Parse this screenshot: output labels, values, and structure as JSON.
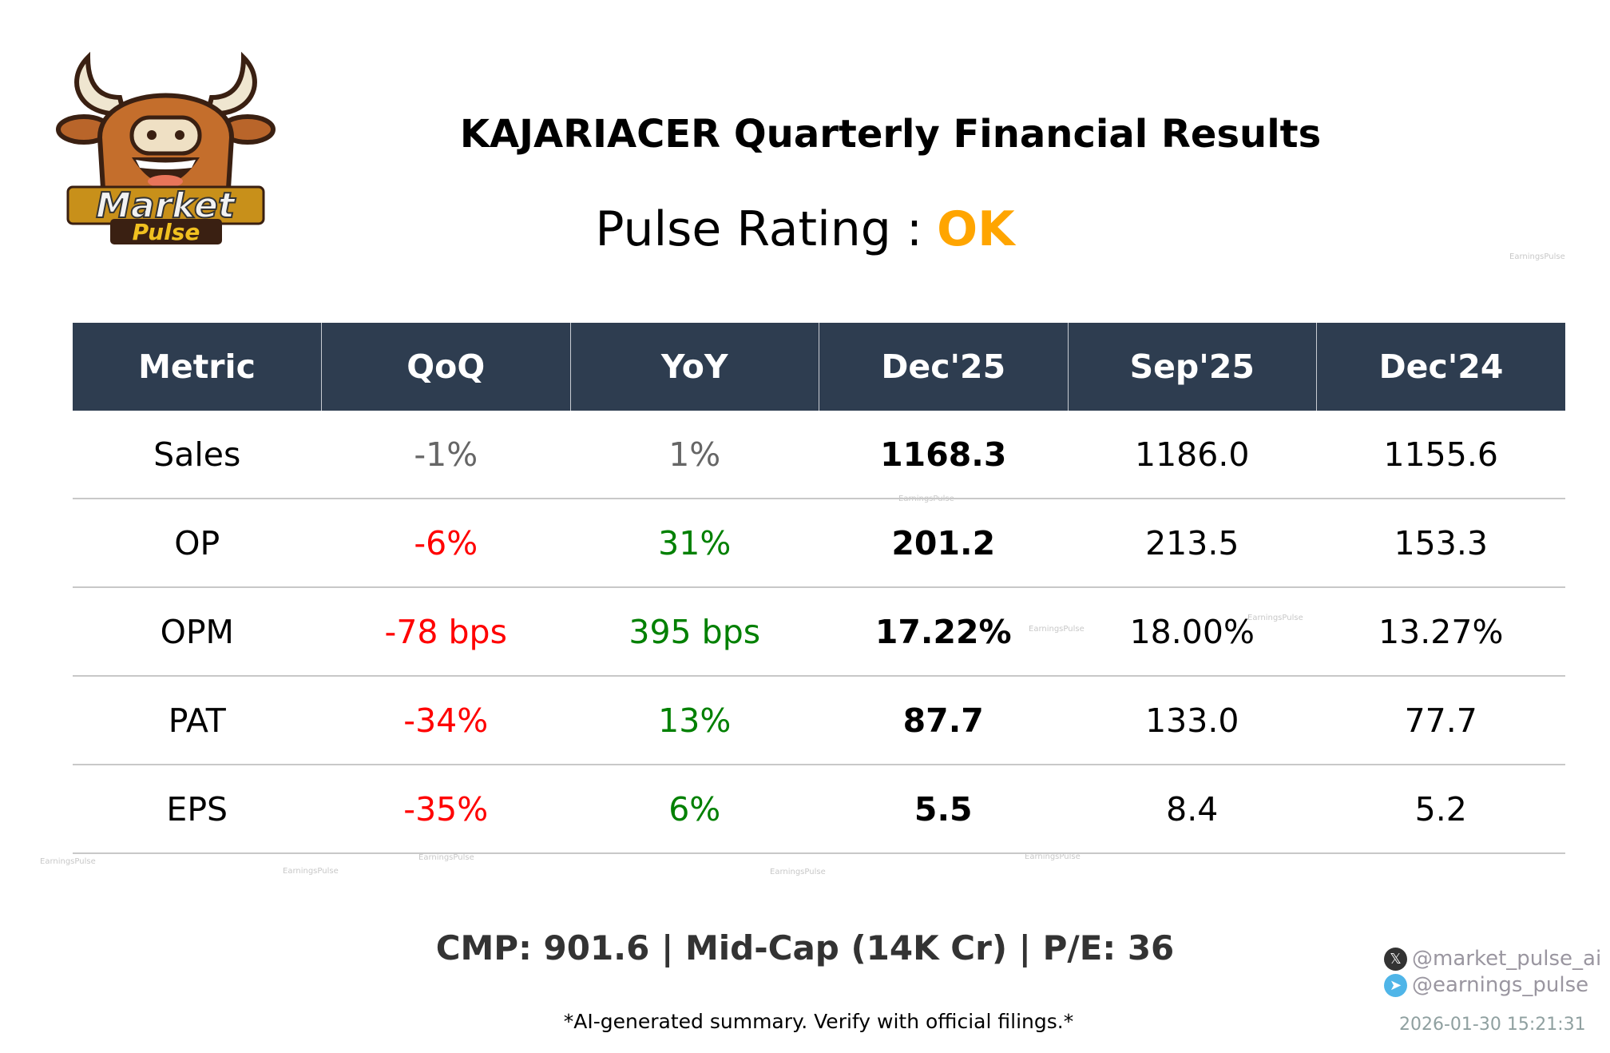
{
  "logo": {
    "text_line1": "Market",
    "text_line2": "Pulse"
  },
  "title": "KAJARIACER Quarterly Financial Results",
  "pulse_rating": {
    "label": "Pulse Rating :",
    "value": "OK",
    "color": "#ffa500"
  },
  "table": {
    "headers": [
      "Metric",
      "QoQ",
      "YoY",
      "Dec'25",
      "Sep'25",
      "Dec'24"
    ],
    "rows": [
      {
        "metric": "Sales",
        "qoq": "-1%",
        "yoy": "1%",
        "cur": "1168.3",
        "prev": "1186.0",
        "ly": "1155.6",
        "qoq_color": "#666666",
        "yoy_color": "#666666"
      },
      {
        "metric": "OP",
        "qoq": "-6%",
        "yoy": "31%",
        "cur": "201.2",
        "prev": "213.5",
        "ly": "153.3",
        "qoq_color": "#ff0000",
        "yoy_color": "#008000"
      },
      {
        "metric": "OPM",
        "qoq": "-78 bps",
        "yoy": "395 bps",
        "cur": "17.22%",
        "prev": "18.00%",
        "ly": "13.27%",
        "qoq_color": "#ff0000",
        "yoy_color": "#008000"
      },
      {
        "metric": "PAT",
        "qoq": "-34%",
        "yoy": "13%",
        "cur": "87.7",
        "prev": "133.0",
        "ly": "77.7",
        "qoq_color": "#ff0000",
        "yoy_color": "#008000"
      },
      {
        "metric": "EPS",
        "qoq": "-35%",
        "yoy": "6%",
        "cur": "5.5",
        "prev": "8.4",
        "ly": "5.2",
        "qoq_color": "#ff0000",
        "yoy_color": "#008000"
      }
    ]
  },
  "watermark": "EarningsPulse",
  "cmp_line": "CMP: 901.6 | Mid-Cap (14K Cr) | P/E: 36",
  "disclaimer": "*AI-generated summary. Verify with official filings.*",
  "social": {
    "x_handle": "@market_pulse_ai",
    "telegram_handle": "@earnings_pulse",
    "x_icon": "x-logo-icon",
    "telegram_icon": "telegram-icon"
  },
  "timestamp": "2026-01-30 15:21:31",
  "colors": {
    "header_bg": "#2e3d50",
    "negative": "#ff0000",
    "positive": "#008000",
    "neutral": "#666666"
  }
}
